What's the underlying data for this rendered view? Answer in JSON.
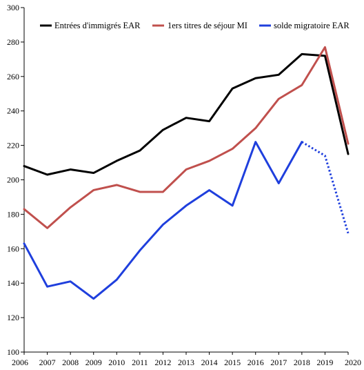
{
  "chart_data": {
    "type": "line",
    "x": [
      2006,
      2007,
      2008,
      2009,
      2010,
      2011,
      2012,
      2013,
      2014,
      2015,
      2016,
      2017,
      2018,
      2019,
      2020
    ],
    "ylim": [
      100,
      300
    ],
    "yticks": [
      100,
      120,
      140,
      160,
      180,
      200,
      220,
      240,
      260,
      280,
      300
    ],
    "grid": false,
    "legend_position": "top",
    "series": [
      {
        "name": "Entrées d'immigrés EAR",
        "color": "#000000",
        "values": [
          208,
          203,
          206,
          204,
          211,
          217,
          229,
          236,
          234,
          253,
          259,
          261,
          273,
          272,
          215
        ],
        "dashed_from_index": null
      },
      {
        "name": "1ers titres de séjour MI",
        "color": "#c0504d",
        "values": [
          183,
          172,
          184,
          194,
          197,
          193,
          193,
          206,
          211,
          218,
          230,
          247,
          255,
          277,
          221
        ],
        "dashed_from_index": null
      },
      {
        "name": "solde migratoire EAR",
        "color": "#1f3fdd",
        "values": [
          163,
          138,
          141,
          131,
          142,
          159,
          174,
          185,
          194,
          185,
          222,
          198,
          222,
          214,
          169
        ],
        "dashed_from_index": 12
      }
    ]
  }
}
